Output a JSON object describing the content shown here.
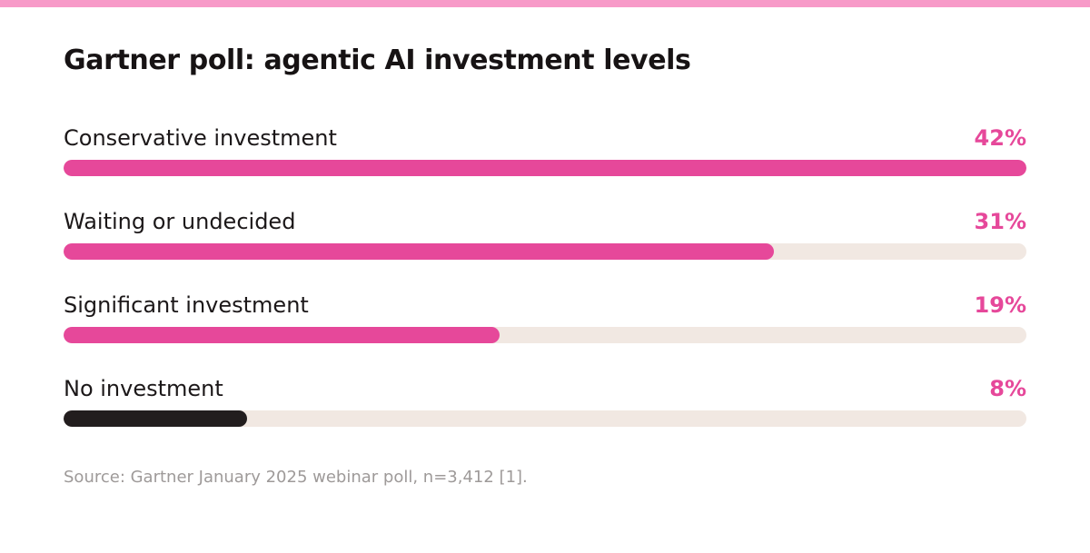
{
  "colors": {
    "stripe": "#f79ac8",
    "accent": "#e6489a",
    "dark": "#221d1e",
    "track": "#f1e8e2"
  },
  "chart_data": {
    "type": "bar",
    "orientation": "horizontal",
    "title": "Gartner poll: agentic AI investment levels",
    "xlim": [
      0,
      42
    ],
    "categories": [
      "Conservative investment",
      "Waiting or undecided",
      "Significant investment",
      "No investment"
    ],
    "values": [
      42,
      31,
      19,
      8
    ],
    "value_labels": [
      "42%",
      "31%",
      "19%",
      "8%"
    ],
    "bar_colors": [
      "#e6489a",
      "#e6489a",
      "#e6489a",
      "#221d1e"
    ],
    "grid": false,
    "legend": false
  },
  "footer": {
    "source": "Source: Gartner January 2025 webinar poll, n=3,412 [1]."
  }
}
